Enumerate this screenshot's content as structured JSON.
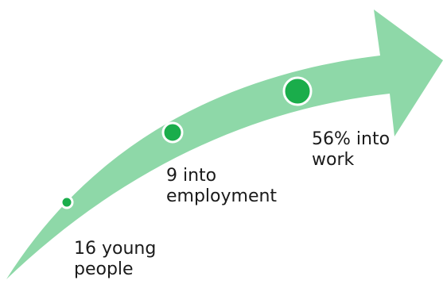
{
  "colors": {
    "arrow_fill": "#8ed8a8",
    "marker_fill": "#1aad4b",
    "marker_stroke": "#ffffff"
  },
  "milestones": [
    {
      "lines": [
        "16 young",
        "people"
      ]
    },
    {
      "lines": [
        "9 into",
        "employment"
      ]
    },
    {
      "lines": [
        "56% into",
        "work"
      ]
    }
  ]
}
